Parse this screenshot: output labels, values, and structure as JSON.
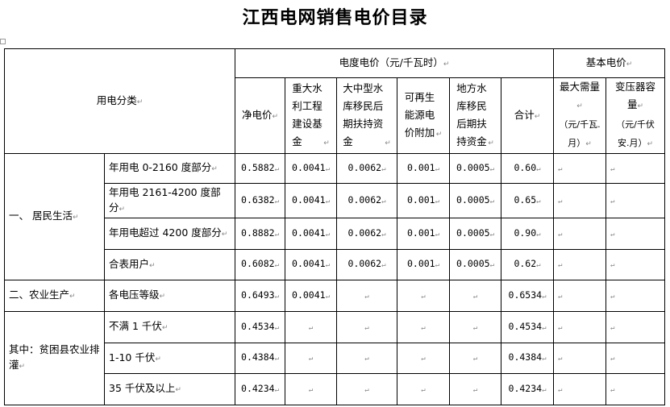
{
  "title": "江西电网销售电价目录",
  "header": {
    "category": "用电分类",
    "energy_price": "电度电价（元/千瓦时）",
    "basic_price": "基本电价",
    "columns": [
      "净电价",
      "重大水利工程建设基金",
      "大中型水库移民后期扶持资金",
      "可再生能源电价附加",
      "地方水库移民后期扶持资金",
      "合计"
    ],
    "basic_columns": [
      {
        "name": "最大需量",
        "unit": "（元/千瓦.月）"
      },
      {
        "name": "变压器容量",
        "unit": "（元/千伏安.月）"
      }
    ]
  },
  "groups": [
    {
      "label": "一、 居民生活",
      "rows": [
        {
          "sub": "年用电 0-2160 度部分",
          "values": [
            "0.5882",
            "0.0041",
            "0.0062",
            "0.001",
            "0.0005",
            "0.60",
            "",
            ""
          ]
        },
        {
          "sub": "年用电 2161-4200 度部分",
          "values": [
            "0.6382",
            "0.0041",
            "0.0062",
            "0.001",
            "0.0005",
            "0.65",
            "",
            ""
          ]
        },
        {
          "sub": "年用电超过 4200 度部分",
          "values": [
            "0.8882",
            "0.0041",
            "0.0062",
            "0.001",
            "0.0005",
            "0.90",
            "",
            ""
          ]
        },
        {
          "sub": "合表用户",
          "values": [
            "0.6082",
            "0.0041",
            "0.0062",
            "0.001",
            "0.0005",
            "0.62",
            "",
            ""
          ]
        }
      ]
    },
    {
      "label": "二、农业生产",
      "rows": [
        {
          "sub": "各电压等级",
          "values": [
            "0.6493",
            "0.0041",
            "",
            "",
            "",
            "0.6534",
            "",
            ""
          ]
        }
      ]
    },
    {
      "label": "其中：贫困县农业排灌",
      "rows": [
        {
          "sub": "不满 1 千伏",
          "values": [
            "0.4534",
            "",
            "",
            "",
            "",
            "0.4534",
            "",
            ""
          ]
        },
        {
          "sub": "1-10 千伏",
          "values": [
            "0.4384",
            "",
            "",
            "",
            "",
            "0.4384",
            "",
            ""
          ]
        },
        {
          "sub": "35 千伏及以上",
          "values": [
            "0.4234",
            "",
            "",
            "",
            "",
            "0.4234",
            "",
            ""
          ]
        }
      ]
    }
  ]
}
